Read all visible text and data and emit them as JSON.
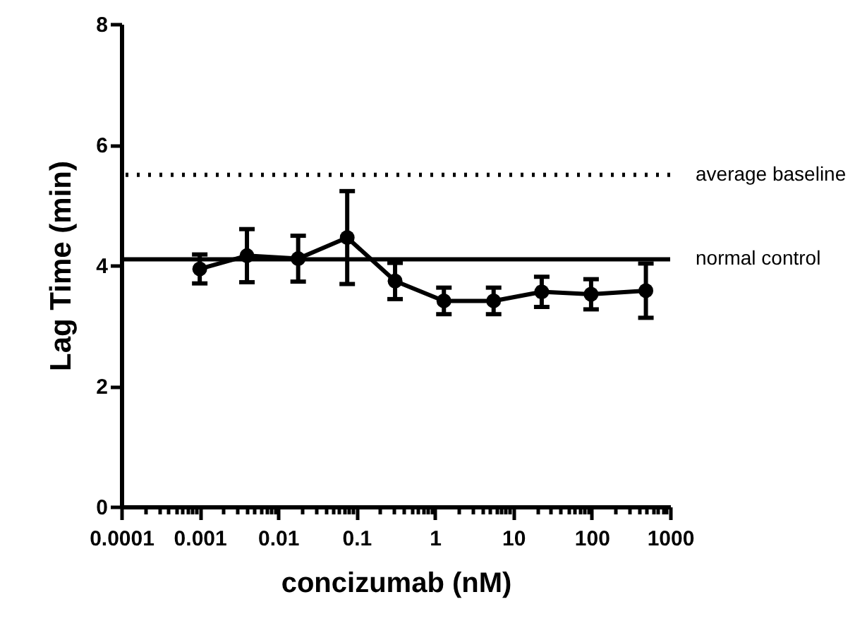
{
  "chart_data": {
    "type": "line",
    "xlabel": "concizumab (nM)",
    "ylabel": "Lag Time (min)",
    "log": "x",
    "grid": false,
    "marker": "circle",
    "line_style": "solid",
    "x": [
      0.001,
      0.004,
      0.018,
      0.076,
      0.31,
      1.3,
      5.6,
      23,
      98,
      490
    ],
    "series": [
      {
        "color": "#000000",
        "values": [
          3.94,
          4.16,
          4.11,
          4.46,
          3.74,
          3.41,
          3.41,
          3.56,
          3.52,
          3.58
        ],
        "errors": [
          0.24,
          0.44,
          0.38,
          0.77,
          0.3,
          0.22,
          0.22,
          0.25,
          0.25,
          0.45
        ]
      }
    ],
    "xlim": [
      0.0001,
      1000
    ],
    "ylim": [
      0,
      8
    ],
    "yticks": [
      0,
      2,
      4,
      6,
      8
    ],
    "xticks": [
      0.0001,
      {
        "value": 0.0002,
        "label": null
      },
      {
        "value": 0.0003,
        "label": null
      },
      {
        "value": 0.0004,
        "label": null
      },
      {
        "value": 0.0005,
        "label": null
      },
      {
        "value": 0.0006,
        "label": null
      },
      {
        "value": 0.0007,
        "label": null
      },
      {
        "value": 0.0008,
        "label": null
      },
      {
        "value": 0.0009,
        "label": null
      },
      0.001,
      {
        "value": 0.002,
        "label": null
      },
      {
        "value": 0.003,
        "label": null
      },
      {
        "value": 0.004,
        "label": null
      },
      {
        "value": 0.005,
        "label": null
      },
      {
        "value": 0.006,
        "label": null
      },
      {
        "value": 0.007,
        "label": null
      },
      {
        "value": 0.008,
        "label": null
      },
      {
        "value": 0.009,
        "label": null
      },
      0.01,
      {
        "value": 0.02,
        "label": null
      },
      {
        "value": 0.03,
        "label": null
      },
      {
        "value": 0.04,
        "label": null
      },
      {
        "value": 0.05,
        "label": null
      },
      {
        "value": 0.06,
        "label": null
      },
      {
        "value": 0.07,
        "label": null
      },
      {
        "value": 0.08,
        "label": null
      },
      {
        "value": 0.09,
        "label": null
      },
      0.1,
      {
        "value": 0.2,
        "label": null
      },
      {
        "value": 0.3,
        "label": null
      },
      {
        "value": 0.4,
        "label": null
      },
      {
        "value": 0.5,
        "label": null
      },
      {
        "value": 0.6,
        "label": null
      },
      {
        "value": 0.7,
        "label": null
      },
      {
        "value": 0.8,
        "label": null
      },
      {
        "value": 0.9,
        "label": null
      },
      1,
      {
        "value": 2,
        "label": null
      },
      {
        "value": 3,
        "label": null
      },
      {
        "value": 4,
        "label": null
      },
      {
        "value": 5,
        "label": null
      },
      {
        "value": 6,
        "label": null
      },
      {
        "value": 7,
        "label": null
      },
      {
        "value": 8,
        "label": null
      },
      {
        "value": 9,
        "label": null
      },
      10,
      {
        "value": 20,
        "label": null
      },
      {
        "value": 30,
        "label": null
      },
      {
        "value": 40,
        "label": null
      },
      {
        "value": 50,
        "label": null
      },
      {
        "value": 60,
        "label": null
      },
      {
        "value": 70,
        "label": null
      },
      {
        "value": 80,
        "label": null
      },
      {
        "value": 90,
        "label": null
      },
      100,
      {
        "value": 200,
        "label": null
      },
      {
        "value": 300,
        "label": null
      },
      {
        "value": 400,
        "label": null
      },
      {
        "value": 500,
        "label": null
      },
      {
        "value": 600,
        "label": null
      },
      {
        "value": 700,
        "label": null
      },
      {
        "value": 800,
        "label": null
      },
      {
        "value": 900,
        "label": null
      },
      1000
    ],
    "ref_lines": [
      {
        "axis": "y",
        "value": 5.5,
        "label": "average baseline",
        "color": "#000000",
        "line_style": "dotted"
      },
      {
        "axis": "y",
        "value": 4.1,
        "label": "normal control",
        "color": "#000000",
        "line_style": "solid"
      }
    ]
  }
}
